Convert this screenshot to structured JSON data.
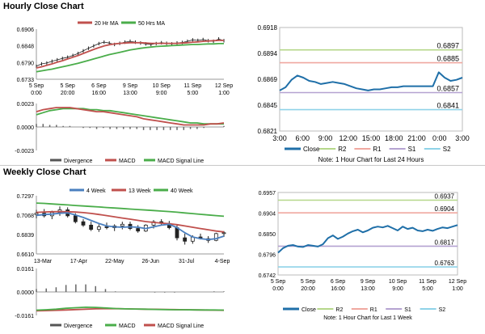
{
  "page": {
    "hourly_title": "Hourly Close Chart",
    "weekly_title": "Weekly Close Chart"
  },
  "chart_data": [
    {
      "id": "hourly_price",
      "type": "line",
      "legend": [
        "20 Hr MA",
        "50 Hrs MA"
      ],
      "legend_colors": [
        "#c0504d",
        "#4aad4a"
      ],
      "ylim": [
        0.6733,
        0.6906
      ],
      "y_ticks": [
        "0.6906",
        "0.6848",
        "0.6790",
        "0.6733"
      ],
      "x_ticks": [
        [
          "5 Sep",
          "0:00"
        ],
        [
          "5 Sep",
          "20:00"
        ],
        [
          "6 Sep",
          "16:00"
        ],
        [
          "9 Sep",
          "13:00"
        ],
        [
          "10 Sep",
          "9:00"
        ],
        [
          "11 Sep",
          "5:00"
        ],
        [
          "12 Sep",
          "1:00"
        ]
      ],
      "close": [
        0.6778,
        0.6786,
        0.6789,
        0.6795,
        0.68,
        0.6805,
        0.6809,
        0.6815,
        0.6822,
        0.6831,
        0.684,
        0.6848,
        0.6856,
        0.6861,
        0.6858,
        0.6853,
        0.6857,
        0.6861,
        0.6864,
        0.6861,
        0.6858,
        0.6855,
        0.6853,
        0.6856,
        0.6859,
        0.6857,
        0.6855,
        0.6858,
        0.686,
        0.6864,
        0.6869,
        0.6867,
        0.687,
        0.6866,
        0.6864,
        0.6872,
        0.6866
      ],
      "ma20": [
        0.6772,
        0.6776,
        0.6781,
        0.6786,
        0.6792,
        0.6797,
        0.6803,
        0.6809,
        0.6815,
        0.6822,
        0.6829,
        0.6836,
        0.6842,
        0.6848,
        0.6852,
        0.6855,
        0.6857,
        0.6858,
        0.6859,
        0.6859,
        0.6859,
        0.6858,
        0.6857,
        0.6857,
        0.6857,
        0.6857,
        0.6857,
        0.6857,
        0.6858,
        0.6859,
        0.6861,
        0.6862,
        0.6864,
        0.6865,
        0.6866,
        0.6867,
        0.6867
      ],
      "ma50": [
        0.6759,
        0.6762,
        0.6765,
        0.6768,
        0.6772,
        0.6776,
        0.678,
        0.6784,
        0.6788,
        0.6793,
        0.6798,
        0.6803,
        0.6808,
        0.6813,
        0.6818,
        0.6822,
        0.6826,
        0.683,
        0.6834,
        0.6837,
        0.684,
        0.6842,
        0.6844,
        0.6846,
        0.6847,
        0.6848,
        0.6849,
        0.685,
        0.6851,
        0.6852,
        0.6853,
        0.6853,
        0.6854,
        0.6855,
        0.6855,
        0.6856,
        0.6856
      ]
    },
    {
      "id": "hourly_macd",
      "type": "line",
      "legend": [
        "Divergence",
        "MACD",
        "MACD Signal Line"
      ],
      "legend_colors": [
        "#555555",
        "#c0504d",
        "#4aad4a"
      ],
      "ylim": [
        -0.0023,
        0.0023
      ],
      "y_ticks": [
        "0.0023",
        "0.0000",
        "-0.0023"
      ],
      "macd": [
        0.0015,
        0.0017,
        0.0018,
        0.0019,
        0.0019,
        0.0019,
        0.0018,
        0.0017,
        0.0016,
        0.0015,
        0.0015,
        0.0014,
        0.0013,
        0.0012,
        0.0011,
        0.001,
        0.0008,
        0.0007,
        0.0006,
        0.0005,
        0.0004,
        0.0003,
        0.0002,
        0.0002,
        0.0002,
        0.0002,
        0.0003,
        0.0003,
        0.0004
      ],
      "signal": [
        0.0012,
        0.0014,
        0.0016,
        0.0017,
        0.0018,
        0.0018,
        0.0018,
        0.0018,
        0.0017,
        0.0017,
        0.0016,
        0.0016,
        0.0015,
        0.0014,
        0.0013,
        0.0012,
        0.0011,
        0.001,
        0.0009,
        0.0008,
        0.0007,
        0.0006,
        0.0005,
        0.0004,
        0.0004,
        0.0003,
        0.0003,
        0.0003,
        0.0003
      ]
    },
    {
      "id": "hourly_24h",
      "type": "line",
      "legend": [
        "Close",
        "R2",
        "R1",
        "S1",
        "S2"
      ],
      "legend_colors": [
        "#1f6fa8",
        "#b5d78a",
        "#f0a8a0",
        "#b5a3d1",
        "#8fd3e8"
      ],
      "ylim": [
        0.6821,
        0.6918
      ],
      "y_ticks": [
        "0.6918",
        "0.6894",
        "0.6869",
        "0.6845",
        "0.6821"
      ],
      "x_ticks": [
        "3:00",
        "6:00",
        "9:00",
        "12:00",
        "15:00",
        "18:00",
        "21:00",
        "0:00",
        "3:00"
      ],
      "levels": [
        {
          "name": "R2",
          "value": 0.6897,
          "label": "0.6897",
          "color": "#b5d78a"
        },
        {
          "name": "R1",
          "value": 0.6885,
          "label": "0.6885",
          "color": "#f0a8a0"
        },
        {
          "name": "S1",
          "value": 0.6857,
          "label": "0.6857",
          "color": "#b5a3d1"
        },
        {
          "name": "S2",
          "value": 0.6841,
          "label": "0.6841",
          "color": "#8fd3e8"
        }
      ],
      "close": [
        0.6859,
        0.6862,
        0.6869,
        0.6873,
        0.6871,
        0.6868,
        0.6867,
        0.6865,
        0.6866,
        0.6867,
        0.6866,
        0.6865,
        0.6863,
        0.6861,
        0.686,
        0.6859,
        0.686,
        0.686,
        0.6861,
        0.6862,
        0.6862,
        0.6863,
        0.6863,
        0.6863,
        0.6863,
        0.6863,
        0.6863,
        0.6876,
        0.6871,
        0.6868,
        0.6869,
        0.6871
      ],
      "note": "Note: 1 Hour Chart for Last 24 Hours"
    },
    {
      "id": "weekly_price",
      "type": "line",
      "legend": [
        "4 Week",
        "13 Week",
        "40 Week"
      ],
      "legend_colors": [
        "#4a7fbf",
        "#c0504d",
        "#4aad4a"
      ],
      "ylim": [
        0.661,
        0.7297
      ],
      "y_ticks": [
        "0.7297",
        "0.7068",
        "0.6839",
        "0.6610"
      ],
      "x_ticks": [
        "13-Mar",
        "17-Apr",
        "22-May",
        "26-Jun",
        "31-Jul",
        "4-Sep"
      ],
      "candles": [
        {
          "o": 0.7075,
          "h": 0.713,
          "l": 0.703,
          "c": 0.709
        },
        {
          "o": 0.709,
          "h": 0.714,
          "l": 0.704,
          "c": 0.706
        },
        {
          "o": 0.706,
          "h": 0.712,
          "l": 0.702,
          "c": 0.71
        },
        {
          "o": 0.71,
          "h": 0.717,
          "l": 0.706,
          "c": 0.713
        },
        {
          "o": 0.713,
          "h": 0.716,
          "l": 0.704,
          "c": 0.706
        },
        {
          "o": 0.706,
          "h": 0.709,
          "l": 0.697,
          "c": 0.699
        },
        {
          "o": 0.699,
          "h": 0.702,
          "l": 0.693,
          "c": 0.695
        },
        {
          "o": 0.695,
          "h": 0.699,
          "l": 0.688,
          "c": 0.69
        },
        {
          "o": 0.69,
          "h": 0.696,
          "l": 0.687,
          "c": 0.693
        },
        {
          "o": 0.693,
          "h": 0.698,
          "l": 0.69,
          "c": 0.692
        },
        {
          "o": 0.692,
          "h": 0.696,
          "l": 0.688,
          "c": 0.694
        },
        {
          "o": 0.694,
          "h": 0.699,
          "l": 0.69,
          "c": 0.696
        },
        {
          "o": 0.696,
          "h": 0.699,
          "l": 0.689,
          "c": 0.691
        },
        {
          "o": 0.691,
          "h": 0.695,
          "l": 0.686,
          "c": 0.688
        },
        {
          "o": 0.688,
          "h": 0.696,
          "l": 0.687,
          "c": 0.695
        },
        {
          "o": 0.695,
          "h": 0.701,
          "l": 0.691,
          "c": 0.699
        },
        {
          "o": 0.699,
          "h": 0.702,
          "l": 0.695,
          "c": 0.697
        },
        {
          "o": 0.697,
          "h": 0.7,
          "l": 0.69,
          "c": 0.692
        },
        {
          "o": 0.692,
          "h": 0.695,
          "l": 0.677,
          "c": 0.68
        },
        {
          "o": 0.68,
          "h": 0.685,
          "l": 0.672,
          "c": 0.676
        },
        {
          "o": 0.676,
          "h": 0.683,
          "l": 0.673,
          "c": 0.681
        },
        {
          "o": 0.681,
          "h": 0.685,
          "l": 0.678,
          "c": 0.679
        },
        {
          "o": 0.679,
          "h": 0.682,
          "l": 0.674,
          "c": 0.677
        },
        {
          "o": 0.677,
          "h": 0.686,
          "l": 0.676,
          "c": 0.685
        },
        {
          "o": 0.685,
          "h": 0.688,
          "l": 0.681,
          "c": 0.686
        }
      ],
      "ma4": [
        0.7065,
        0.7075,
        0.708,
        0.709,
        0.7095,
        0.707,
        0.704,
        0.7005,
        0.697,
        0.694,
        0.693,
        0.6925,
        0.693,
        0.6925,
        0.691,
        0.693,
        0.695,
        0.696,
        0.692,
        0.686,
        0.681,
        0.679,
        0.678,
        0.679,
        0.682
      ],
      "ma13": [
        0.71,
        0.7105,
        0.7108,
        0.711,
        0.7108,
        0.7104,
        0.7098,
        0.7088,
        0.7076,
        0.7062,
        0.7048,
        0.7034,
        0.702,
        0.7006,
        0.6992,
        0.6982,
        0.6974,
        0.6966,
        0.6955,
        0.694,
        0.6925,
        0.691,
        0.6895,
        0.688,
        0.687
      ],
      "ma40": [
        0.721,
        0.7206,
        0.72,
        0.7194,
        0.7188,
        0.7182,
        0.7176,
        0.717,
        0.7164,
        0.7158,
        0.7152,
        0.7146,
        0.714,
        0.7134,
        0.7128,
        0.7122,
        0.7116,
        0.711,
        0.7102,
        0.7094,
        0.7086,
        0.7078,
        0.707,
        0.7062,
        0.7055
      ]
    },
    {
      "id": "weekly_macd",
      "type": "line",
      "legend": [
        "Divergence",
        "MACD",
        "MACD Signal Line"
      ],
      "legend_colors": [
        "#555555",
        "#4aad4a",
        "#c0504d"
      ],
      "ylim": [
        -0.0161,
        0.0161
      ],
      "y_ticks": [
        "0.0161",
        "0.0000",
        "-0.0161"
      ],
      "macd": [
        -0.0125,
        -0.0122,
        -0.0118,
        -0.0112,
        -0.0108,
        -0.0105,
        -0.0106,
        -0.011,
        -0.0114,
        -0.0116,
        -0.0117,
        -0.0118,
        -0.012,
        -0.0121,
        -0.0122,
        -0.0122,
        -0.0123,
        -0.0124,
        -0.0124,
        -0.0125
      ],
      "signal": [
        -0.013,
        -0.0128,
        -0.0126,
        -0.0124,
        -0.0121,
        -0.0118,
        -0.0116,
        -0.0115,
        -0.0115,
        -0.0116,
        -0.0117,
        -0.0118,
        -0.0119,
        -0.012,
        -0.0121,
        -0.0122,
        -0.0123,
        -0.0124,
        -0.0125,
        -0.0126
      ]
    },
    {
      "id": "weekly_hourly",
      "type": "line",
      "legend": [
        "Close",
        "R2",
        "R1",
        "S1",
        "S2"
      ],
      "legend_colors": [
        "#1f6fa8",
        "#b5d78a",
        "#f0a8a0",
        "#b5a3d1",
        "#8fd3e8"
      ],
      "ylim": [
        0.6742,
        0.6957
      ],
      "y_ticks": [
        "0.6957",
        "0.6904",
        "0.6850",
        "0.6796",
        "0.6742"
      ],
      "x_ticks": [
        [
          "5 Sep",
          "0:00"
        ],
        [
          "5 Sep",
          "20:00"
        ],
        [
          "6 Sep",
          "16:00"
        ],
        [
          "9 Sep",
          "13:00"
        ],
        [
          "10 Sep",
          "9:00"
        ],
        [
          "11 Sep",
          "5:00"
        ],
        [
          "12 Sep",
          "1:00"
        ]
      ],
      "levels": [
        {
          "name": "R2",
          "value": 0.6937,
          "label": "0.6937",
          "color": "#b5d78a"
        },
        {
          "name": "R1",
          "value": 0.6904,
          "label": "0.6904",
          "color": "#f0a8a0"
        },
        {
          "name": "S1",
          "value": 0.6817,
          "label": "0.6817",
          "color": "#b5a3d1"
        },
        {
          "name": "S2",
          "value": 0.6763,
          "label": "0.6763",
          "color": "#8fd3e8"
        }
      ],
      "close": [
        0.68,
        0.6812,
        0.6818,
        0.682,
        0.6816,
        0.6815,
        0.682,
        0.6818,
        0.6816,
        0.6822,
        0.6838,
        0.6845,
        0.6836,
        0.6842,
        0.685,
        0.6856,
        0.686,
        0.6853,
        0.6858,
        0.6865,
        0.6868,
        0.6866,
        0.687,
        0.6864,
        0.6858,
        0.6868,
        0.6862,
        0.6865,
        0.6858,
        0.6856,
        0.686,
        0.6857,
        0.6862,
        0.6866,
        0.6864,
        0.6868,
        0.6872
      ],
      "note": "Note: 1 Hour Chart for Last 1 Week"
    }
  ]
}
